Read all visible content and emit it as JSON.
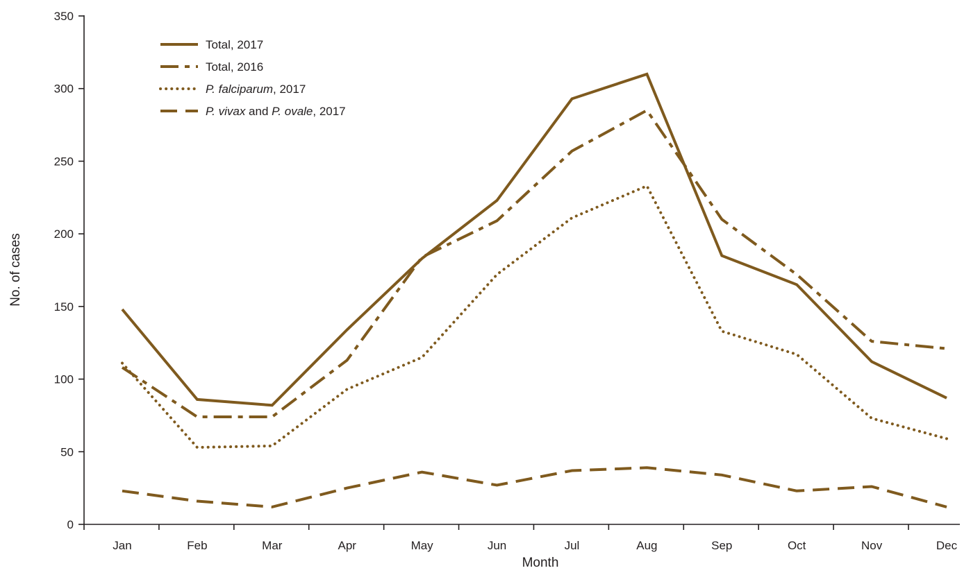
{
  "chart_data": {
    "type": "line",
    "title": "",
    "xlabel": "Month",
    "ylabel": "No. of cases",
    "categories": [
      "Jan",
      "Feb",
      "Mar",
      "Apr",
      "May",
      "Jun",
      "Jul",
      "Aug",
      "Sep",
      "Oct",
      "Nov",
      "Dec"
    ],
    "yticks": [
      0,
      50,
      100,
      150,
      200,
      250,
      300,
      350
    ],
    "ylim": [
      0,
      350
    ],
    "grid": false,
    "legend": "top-left",
    "color": "#7f5a1e",
    "series": [
      {
        "key": "total2017",
        "label_parts": [
          {
            "text": "Total, 2017",
            "italic": false
          }
        ],
        "style": "solid",
        "values": [
          148,
          86,
          82,
          134,
          183,
          223,
          293,
          310,
          185,
          165,
          112,
          87
        ]
      },
      {
        "key": "total2016",
        "label_parts": [
          {
            "text": "Total, 2016",
            "italic": false
          }
        ],
        "style": "dash-dot",
        "values": [
          108,
          74,
          74,
          113,
          184,
          209,
          257,
          285,
          210,
          172,
          126,
          121
        ]
      },
      {
        "key": "pfalciparum2017",
        "label_parts": [
          {
            "text": "P. falciparum",
            "italic": true
          },
          {
            "text": ", 2017",
            "italic": false
          }
        ],
        "style": "dotted",
        "values": [
          111,
          53,
          54,
          93,
          115,
          172,
          211,
          233,
          133,
          117,
          73,
          59
        ]
      },
      {
        "key": "pvivax_povale2017",
        "label_parts": [
          {
            "text": "P. vivax",
            "italic": true
          },
          {
            "text": " and ",
            "italic": false
          },
          {
            "text": "P. ovale",
            "italic": true
          },
          {
            "text": ", 2017",
            "italic": false
          }
        ],
        "style": "dashed",
        "values": [
          23,
          16,
          12,
          25,
          36,
          27,
          37,
          39,
          34,
          23,
          26,
          12
        ]
      }
    ]
  }
}
